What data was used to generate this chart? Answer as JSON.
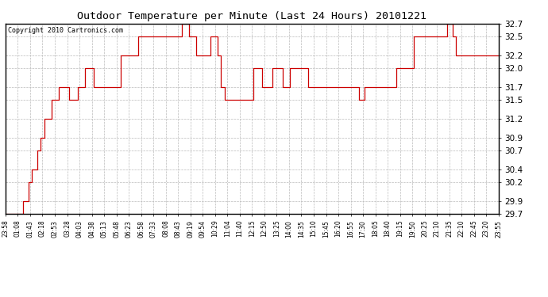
{
  "title": "Outdoor Temperature per Minute (Last 24 Hours) 20101221",
  "copyright": "Copyright 2010 Cartronics.com",
  "line_color": "#cc0000",
  "background_color": "#ffffff",
  "grid_color": "#bbbbbb",
  "ylim": [
    29.7,
    32.7
  ],
  "yticks": [
    29.7,
    29.9,
    30.2,
    30.4,
    30.7,
    30.9,
    31.2,
    31.5,
    31.7,
    32.0,
    32.2,
    32.5,
    32.7
  ],
  "xtick_labels": [
    "23:58",
    "01:08",
    "01:43",
    "02:18",
    "02:53",
    "03:28",
    "04:03",
    "04:38",
    "05:13",
    "05:48",
    "06:23",
    "06:58",
    "07:33",
    "08:08",
    "08:43",
    "09:19",
    "09:54",
    "10:29",
    "11:04",
    "11:40",
    "12:15",
    "12:50",
    "13:25",
    "14:00",
    "14:35",
    "15:10",
    "15:45",
    "16:20",
    "16:55",
    "17:30",
    "18:05",
    "18:40",
    "19:15",
    "19:50",
    "20:25",
    "21:10",
    "21:35",
    "22:10",
    "22:45",
    "23:20",
    "23:55"
  ],
  "temp_data": [
    29.7,
    29.7,
    29.7,
    29.7,
    29.7,
    29.7,
    29.7,
    29.7,
    29.7,
    29.7,
    29.9,
    29.9,
    29.9,
    30.2,
    30.2,
    30.4,
    30.4,
    30.4,
    30.7,
    30.7,
    30.9,
    30.9,
    31.2,
    31.2,
    31.2,
    31.2,
    31.5,
    31.5,
    31.5,
    31.5,
    31.7,
    31.7,
    31.7,
    31.7,
    31.7,
    31.7,
    31.5,
    31.5,
    31.5,
    31.5,
    31.5,
    31.7,
    31.7,
    31.7,
    31.7,
    32.0,
    32.0,
    32.0,
    32.0,
    32.0,
    31.7,
    31.7,
    31.7,
    31.7,
    31.7,
    31.7,
    31.7,
    31.7,
    31.7,
    31.7,
    31.7,
    31.7,
    31.7,
    31.7,
    31.7,
    32.2,
    32.2,
    32.2,
    32.2,
    32.2,
    32.2,
    32.2,
    32.2,
    32.2,
    32.2,
    32.5,
    32.5,
    32.5,
    32.5,
    32.5,
    32.5,
    32.5,
    32.5,
    32.5,
    32.5,
    32.5,
    32.5,
    32.5,
    32.5,
    32.5,
    32.5,
    32.5,
    32.5,
    32.5,
    32.5,
    32.5,
    32.5,
    32.5,
    32.5,
    32.5,
    32.7,
    32.7,
    32.7,
    32.7,
    32.5,
    32.5,
    32.5,
    32.5,
    32.2,
    32.2,
    32.2,
    32.2,
    32.2,
    32.2,
    32.2,
    32.2,
    32.5,
    32.5,
    32.5,
    32.5,
    32.2,
    32.2,
    31.7,
    31.7,
    31.5,
    31.5,
    31.5,
    31.5,
    31.5,
    31.5,
    31.5,
    31.5,
    31.5,
    31.5,
    31.5,
    31.5,
    31.5,
    31.5,
    31.5,
    31.5,
    32.0,
    32.0,
    32.0,
    32.0,
    32.0,
    31.7,
    31.7,
    31.7,
    31.7,
    31.7,
    31.7,
    32.0,
    32.0,
    32.0,
    32.0,
    32.0,
    32.0,
    31.7,
    31.7,
    31.7,
    31.7,
    32.0,
    32.0,
    32.0,
    32.0,
    32.0,
    32.0,
    32.0,
    32.0,
    32.0,
    32.0,
    31.7,
    31.7,
    31.7,
    31.7,
    31.7,
    31.7,
    31.7,
    31.7,
    31.7,
    31.7,
    31.7,
    31.7,
    31.7,
    31.7,
    31.7,
    31.7,
    31.7,
    31.7,
    31.7,
    31.7,
    31.7,
    31.7,
    31.7,
    31.7,
    31.7,
    31.7,
    31.7,
    31.7,
    31.7,
    31.5,
    31.5,
    31.5,
    31.7,
    31.7,
    31.7,
    31.7,
    31.7,
    31.7,
    31.7,
    31.7,
    31.7,
    31.7,
    31.7,
    31.7,
    31.7,
    31.7,
    31.7,
    31.7,
    31.7,
    31.7,
    32.0,
    32.0,
    32.0,
    32.0,
    32.0,
    32.0,
    32.0,
    32.0,
    32.0,
    32.0,
    32.5,
    32.5,
    32.5,
    32.5,
    32.5,
    32.5,
    32.5,
    32.5,
    32.5,
    32.5,
    32.5,
    32.5,
    32.5,
    32.5,
    32.5,
    32.5,
    32.5,
    32.5,
    32.5,
    32.7,
    32.7,
    32.7,
    32.5,
    32.5,
    32.2,
    32.2,
    32.2,
    32.2,
    32.2,
    32.2,
    32.2,
    32.2,
    32.2,
    32.2,
    32.2,
    32.2,
    32.2,
    32.2,
    32.2,
    32.2,
    32.2,
    32.2,
    32.2,
    32.2,
    32.2,
    32.2,
    32.2,
    32.2,
    32.2
  ]
}
